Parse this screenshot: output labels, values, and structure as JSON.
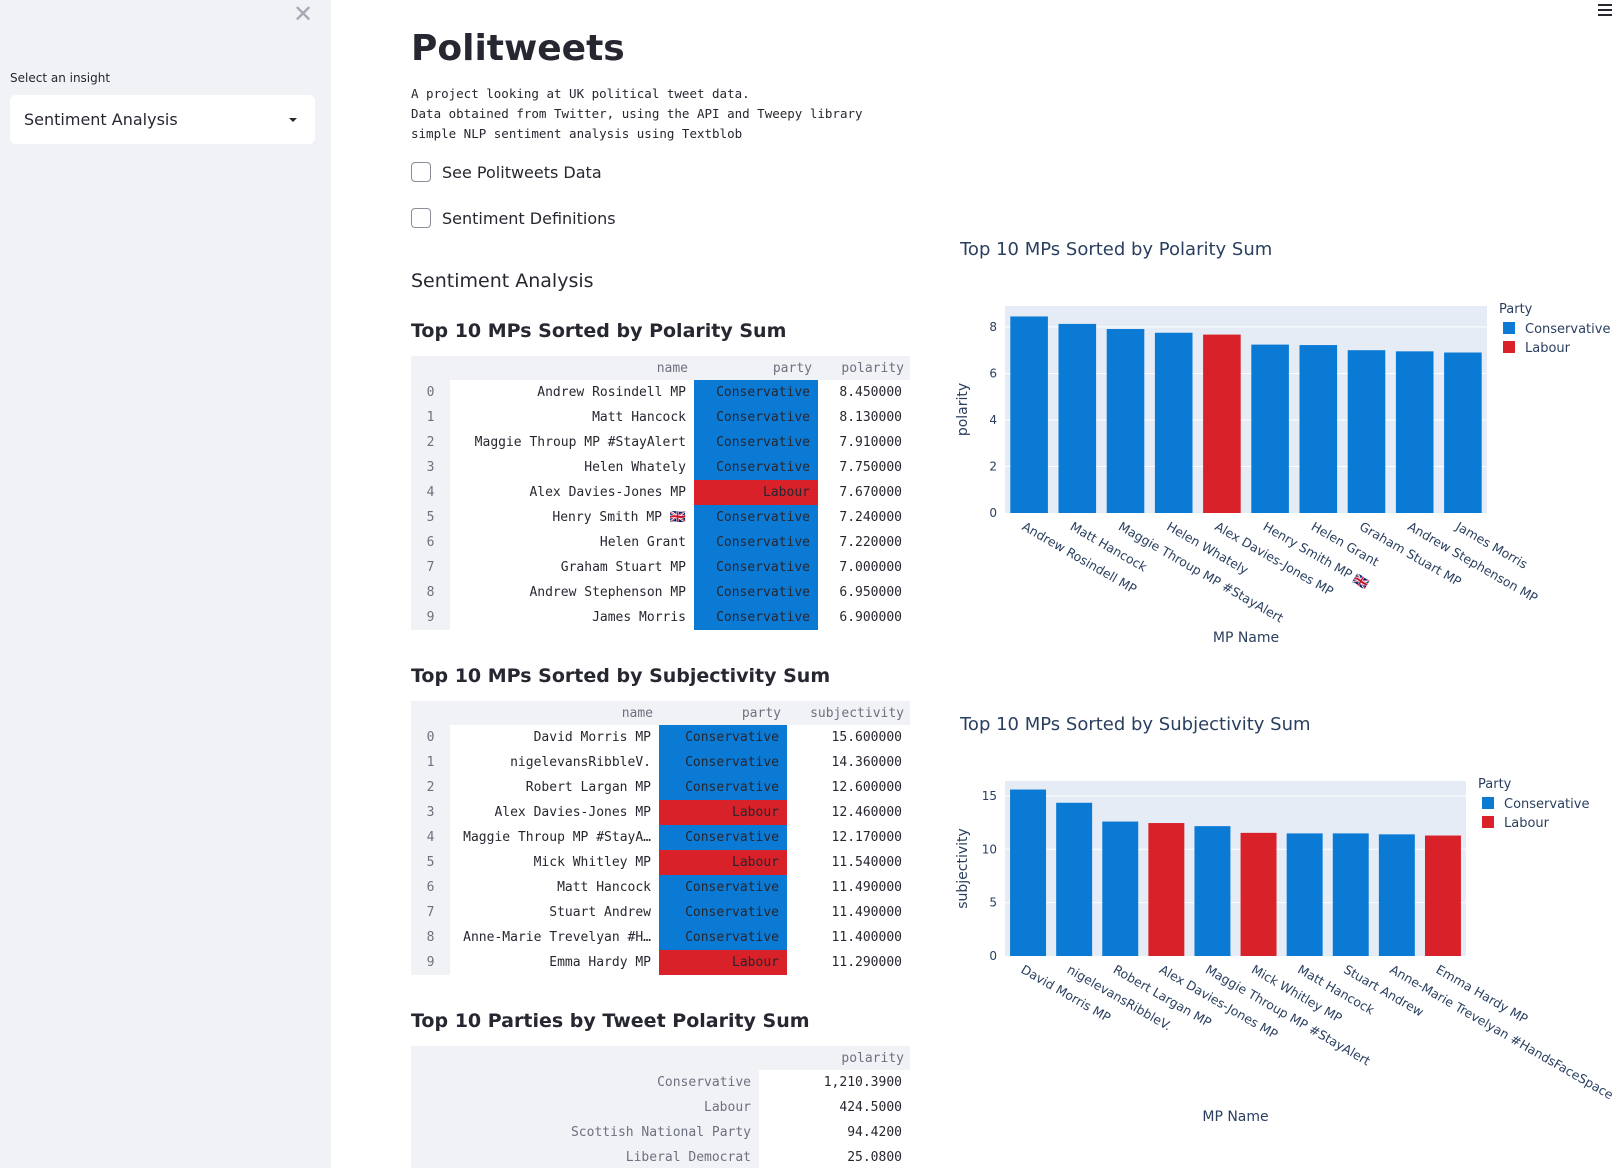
{
  "sidebar": {
    "close_icon": "close-icon",
    "label": "Select an insight",
    "select_value": "Sentiment Analysis"
  },
  "menu_icon": "hamburger-menu-icon",
  "header": {
    "title": "Politweets",
    "description": "A project looking at UK political tweet data.\nData obtained from Twitter, using the API and Tweepy library\nsimple NLP sentiment analysis using Textblob"
  },
  "checkboxes": [
    {
      "label": "See Politweets Data",
      "checked": false
    },
    {
      "label": "Sentiment Definitions",
      "checked": false
    }
  ],
  "section_title": "Sentiment Analysis",
  "colors": {
    "Conservative": "#0a7ad5",
    "Labour": "#d82128"
  },
  "table_polarity": {
    "title": "Top 10 MPs Sorted by Polarity Sum",
    "columns": [
      "",
      "name",
      "party",
      "polarity"
    ],
    "rows": [
      [
        "0",
        "Andrew Rosindell MP",
        "Conservative",
        "8.450000"
      ],
      [
        "1",
        "Matt Hancock",
        "Conservative",
        "8.130000"
      ],
      [
        "2",
        "Maggie Throup MP #StayAlert",
        "Conservative",
        "7.910000"
      ],
      [
        "3",
        "Helen Whately",
        "Conservative",
        "7.750000"
      ],
      [
        "4",
        "Alex Davies-Jones MP",
        "Labour",
        "7.670000"
      ],
      [
        "5",
        "Henry Smith MP 🇬🇧",
        "Conservative",
        "7.240000"
      ],
      [
        "6",
        "Helen Grant",
        "Conservative",
        "7.220000"
      ],
      [
        "7",
        "Graham Stuart MP",
        "Conservative",
        "7.000000"
      ],
      [
        "8",
        "Andrew Stephenson MP",
        "Conservative",
        "6.950000"
      ],
      [
        "9",
        "James Morris",
        "Conservative",
        "6.900000"
      ]
    ]
  },
  "table_subjectivity": {
    "title": "Top 10 MPs Sorted by Subjectivity Sum",
    "columns": [
      "",
      "name",
      "party",
      "subjectivity"
    ],
    "rows": [
      [
        "0",
        "David Morris MP",
        "Conservative",
        "15.600000"
      ],
      [
        "1",
        "nigelevansRibbleV.",
        "Conservative",
        "14.360000"
      ],
      [
        "2",
        "Robert Largan MP",
        "Conservative",
        "12.600000"
      ],
      [
        "3",
        "Alex Davies-Jones MP",
        "Labour",
        "12.460000"
      ],
      [
        "4",
        "Maggie Throup MP #StayA…",
        "Conservative",
        "12.170000"
      ],
      [
        "5",
        "Mick Whitley MP",
        "Labour",
        "11.540000"
      ],
      [
        "6",
        "Matt Hancock",
        "Conservative",
        "11.490000"
      ],
      [
        "7",
        "Stuart Andrew",
        "Conservative",
        "11.490000"
      ],
      [
        "8",
        "Anne-Marie Trevelyan #H…",
        "Conservative",
        "11.400000"
      ],
      [
        "9",
        "Emma Hardy MP",
        "Labour",
        "11.290000"
      ]
    ]
  },
  "table_parties": {
    "title": "Top 10 Parties by Tweet Polarity Sum",
    "columns": [
      "",
      "polarity"
    ],
    "rows": [
      [
        "Conservative",
        "1,210.3900"
      ],
      [
        "Labour",
        "424.5000"
      ],
      [
        "Scottish National Party",
        "94.4200"
      ],
      [
        "Liberal Democrat",
        "25.0800"
      ]
    ]
  },
  "chart_data": [
    {
      "type": "bar",
      "title": "Top 10 MPs Sorted by Polarity Sum",
      "xlabel": "MP Name",
      "ylabel": "polarity",
      "legend_title": "Party",
      "legend": [
        "Conservative",
        "Labour"
      ],
      "legend_placement": "top-right",
      "ylim": [
        0,
        8.9
      ],
      "yticks": [
        0,
        2,
        4,
        6,
        8
      ],
      "categories": [
        "Andrew Rosindell MP",
        "Matt Hancock",
        "Maggie Throup MP #StayAlert",
        "Helen Whately",
        "Alex Davies-Jones MP",
        "Henry Smith MP 🇬🇧",
        "Helen Grant",
        "Graham Stuart MP",
        "Andrew Stephenson MP",
        "James Morris"
      ],
      "values": [
        8.45,
        8.13,
        7.91,
        7.75,
        7.67,
        7.24,
        7.22,
        7.0,
        6.95,
        6.9
      ],
      "party": [
        "Conservative",
        "Conservative",
        "Conservative",
        "Conservative",
        "Labour",
        "Conservative",
        "Conservative",
        "Conservative",
        "Conservative",
        "Conservative"
      ]
    },
    {
      "type": "bar",
      "title": "Top 10 MPs Sorted by Subjectivity Sum",
      "xlabel": "MP Name",
      "ylabel": "subjectivity",
      "legend_title": "Party",
      "legend": [
        "Conservative",
        "Labour"
      ],
      "legend_placement": "top-right",
      "ylim": [
        0,
        16.4
      ],
      "yticks": [
        0,
        5,
        10,
        15
      ],
      "categories": [
        "David Morris MP",
        "nigelevansRibbleV.",
        "Robert Largan MP",
        "Alex Davies-Jones MP",
        "Maggie Throup MP #StayAlert",
        "Mick Whitley MP",
        "Matt Hancock",
        "Stuart Andrew",
        "Anne-Marie Trevelyan #HandsFaceSpace",
        "Emma Hardy MP"
      ],
      "values": [
        15.6,
        14.36,
        12.6,
        12.46,
        12.17,
        11.54,
        11.49,
        11.49,
        11.4,
        11.29
      ],
      "party": [
        "Conservative",
        "Conservative",
        "Conservative",
        "Labour",
        "Conservative",
        "Labour",
        "Conservative",
        "Conservative",
        "Conservative",
        "Labour"
      ]
    }
  ]
}
